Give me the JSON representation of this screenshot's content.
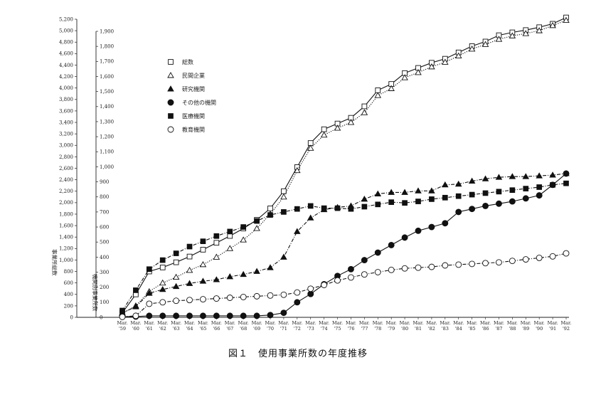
{
  "chart_data": {
    "type": "line",
    "caption": "図１　使用事業所数の年度推移",
    "ylabel_left": "事業所総数",
    "ylabel_right": "機関別事業所数",
    "ylim_left": [
      0,
      5200
    ],
    "ylim_right": [
      0,
      1900
    ],
    "yticks_left": [
      0,
      200,
      400,
      600,
      800,
      1000,
      1200,
      1400,
      1600,
      1800,
      2000,
      2200,
      2400,
      2600,
      2800,
      3000,
      3200,
      3400,
      3600,
      3800,
      4000,
      4200,
      4400,
      4600,
      4800,
      5000,
      5200
    ],
    "yticks_left_labels": [
      "0",
      "200",
      "400",
      "600",
      "800",
      "1,000",
      "1,200",
      "1,400",
      "1,600",
      "1,800",
      "2,000",
      "2,200",
      "2,400",
      "2,600",
      "2,800",
      "3,000",
      "3,200",
      "3,400",
      "3,600",
      "3,800",
      "4,000",
      "4,200",
      "4,400",
      "4,600",
      "4,800",
      "5,000",
      "5,200"
    ],
    "yticks_right": [
      0,
      100,
      200,
      300,
      400,
      500,
      600,
      700,
      800,
      900,
      1000,
      1100,
      1200,
      1300,
      1400,
      1500,
      1600,
      1700,
      1800,
      1900
    ],
    "yticks_right_labels": [
      "0",
      "100",
      "200",
      "300",
      "400",
      "500",
      "600",
      "700",
      "800",
      "900",
      "1,000",
      "1,100",
      "1,200",
      "1,300",
      "1,400",
      "1,500",
      "1,600",
      "1,700",
      "1,800",
      "1,900"
    ],
    "categories": [
      [
        "Mar.",
        "'59"
      ],
      [
        "Mar.",
        "'60"
      ],
      [
        "Mar.",
        "'61"
      ],
      [
        "Mar.",
        "'62"
      ],
      [
        "Mar.",
        "'63"
      ],
      [
        "Mar.",
        "'64"
      ],
      [
        "Mar.",
        "'65"
      ],
      [
        "Mar.",
        "'66"
      ],
      [
        "Mar.",
        "'67"
      ],
      [
        "Mar.",
        "'68"
      ],
      [
        "Mar.",
        "'69"
      ],
      [
        "Mar.",
        "'70"
      ],
      [
        "Mar.",
        "'71"
      ],
      [
        "Mar.",
        "'72"
      ],
      [
        "Mar.",
        "'73"
      ],
      [
        "Mar.",
        "'74"
      ],
      [
        "Mar.",
        "'75"
      ],
      [
        "Mar.",
        "'76"
      ],
      [
        "Mar.",
        "'77"
      ],
      [
        "Mar.",
        "'78"
      ],
      [
        "Mar.",
        "'79"
      ],
      [
        "Mar.",
        "'80"
      ],
      [
        "Mar.",
        "'81"
      ],
      [
        "Mar.",
        "'82"
      ],
      [
        "Mar.",
        "'83"
      ],
      [
        "Mar.",
        "'84"
      ],
      [
        "Mar.",
        "'85"
      ],
      [
        "Mar.",
        "'86"
      ],
      [
        "Mar.",
        "'87"
      ],
      [
        "Mar.",
        "'88"
      ],
      [
        "Mar.",
        "'89"
      ],
      [
        "Mar.",
        "'90"
      ],
      [
        "Mar.",
        "'91"
      ],
      [
        "Mar.",
        "'92"
      ]
    ],
    "legend_position": "upper-left",
    "series": [
      {
        "name": "総数",
        "axis": "left",
        "marker": "open-square",
        "line": "solid",
        "values": [
          80,
          400,
          800,
          870,
          960,
          1060,
          1180,
          1300,
          1420,
          1550,
          1700,
          1900,
          2200,
          2620,
          3040,
          3280,
          3380,
          3480,
          3680,
          3960,
          4070,
          4260,
          4350,
          4440,
          4510,
          4620,
          4730,
          4810,
          4920,
          4970,
          5010,
          5060,
          5120,
          5230
        ]
      },
      {
        "name": "民間企業",
        "axis": "left",
        "marker": "open-triangle",
        "line": "dotted",
        "values": [
          70,
          200,
          450,
          600,
          700,
          820,
          920,
          1050,
          1200,
          1350,
          1550,
          1800,
          2100,
          2560,
          2950,
          3180,
          3300,
          3400,
          3570,
          3870,
          3990,
          4180,
          4270,
          4370,
          4450,
          4560,
          4680,
          4760,
          4850,
          4910,
          4950,
          5000,
          5090,
          5180
        ]
      },
      {
        "name": "研究機関",
        "axis": "right",
        "marker": "filled-triangle",
        "line": "dash-dot",
        "values": [
          30,
          70,
          160,
          185,
          205,
          225,
          240,
          250,
          270,
          285,
          305,
          330,
          400,
          570,
          660,
          715,
          730,
          740,
          785,
          820,
          830,
          830,
          840,
          840,
          880,
          885,
          905,
          920,
          930,
          935,
          935,
          940,
          945,
          955
        ]
      },
      {
        "name": "その他の機関",
        "axis": "right",
        "marker": "filled-circle",
        "line": "solid",
        "values": [
          5,
          5,
          10,
          10,
          10,
          10,
          10,
          10,
          10,
          10,
          10,
          15,
          30,
          100,
          155,
          220,
          275,
          320,
          380,
          430,
          480,
          530,
          575,
          600,
          625,
          700,
          720,
          740,
          755,
          770,
          790,
          810,
          880,
          955
        ]
      },
      {
        "name": "医療機関",
        "axis": "right",
        "marker": "filled-square",
        "line": "dash-dot",
        "values": [
          45,
          180,
          320,
          380,
          425,
          470,
          505,
          540,
          570,
          600,
          640,
          680,
          700,
          720,
          740,
          725,
          725,
          720,
          735,
          750,
          765,
          760,
          770,
          785,
          795,
          805,
          815,
          825,
          835,
          845,
          855,
          865,
          880,
          890
        ]
      },
      {
        "name": "教育機関",
        "axis": "right",
        "marker": "open-circle",
        "line": "dash-dot",
        "values": [
          3,
          10,
          90,
          100,
          110,
          115,
          120,
          125,
          130,
          135,
          140,
          145,
          150,
          165,
          190,
          215,
          245,
          265,
          285,
          300,
          315,
          325,
          330,
          335,
          345,
          350,
          355,
          360,
          365,
          375,
          385,
          395,
          405,
          425
        ]
      }
    ]
  }
}
